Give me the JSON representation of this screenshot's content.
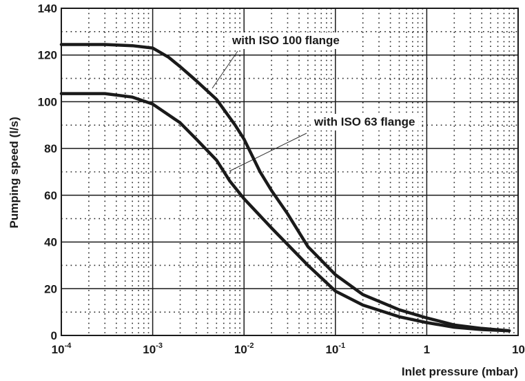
{
  "chart_data": {
    "type": "line",
    "x_scale": "log",
    "xlim": [
      0.0001,
      10
    ],
    "ylim": [
      0,
      140
    ],
    "grid": true,
    "xlabel": "Inlet pressure (mbar)",
    "ylabel": "Pumping speed (l/s)",
    "x_ticks": [
      {
        "base": "10",
        "exp": "-4"
      },
      {
        "base": "10",
        "exp": "-3"
      },
      {
        "base": "10",
        "exp": "-2"
      },
      {
        "base": "10",
        "exp": "-1"
      },
      {
        "base": "1",
        "exp": ""
      },
      {
        "base": "10",
        "exp": ""
      }
    ],
    "y_ticks": [
      "0",
      "20",
      "40",
      "60",
      "80",
      "100",
      "120",
      "140"
    ],
    "series": [
      {
        "name": "with ISO 100 flange",
        "points": [
          [
            0.0001,
            124.5
          ],
          [
            0.0003,
            124.5
          ],
          [
            0.0006,
            124
          ],
          [
            0.001,
            123
          ],
          [
            0.0015,
            119
          ],
          [
            0.002,
            115
          ],
          [
            0.003,
            109
          ],
          [
            0.005,
            101
          ],
          [
            0.008,
            90
          ],
          [
            0.01,
            84
          ],
          [
            0.015,
            70
          ],
          [
            0.02,
            62
          ],
          [
            0.03,
            52
          ],
          [
            0.05,
            38
          ],
          [
            0.1,
            26
          ],
          [
            0.2,
            17.5
          ],
          [
            0.5,
            11
          ],
          [
            1,
            7.5
          ],
          [
            2,
            4.5
          ],
          [
            4,
            3
          ],
          [
            8,
            2
          ]
        ]
      },
      {
        "name": "with ISO 63 flange",
        "points": [
          [
            0.0001,
            103.5
          ],
          [
            0.0003,
            103.5
          ],
          [
            0.0006,
            102
          ],
          [
            0.001,
            99
          ],
          [
            0.002,
            91
          ],
          [
            0.003,
            84
          ],
          [
            0.005,
            75
          ],
          [
            0.007,
            66
          ],
          [
            0.01,
            58.5
          ],
          [
            0.02,
            46
          ],
          [
            0.05,
            30
          ],
          [
            0.1,
            19
          ],
          [
            0.2,
            13
          ],
          [
            0.5,
            8
          ],
          [
            1,
            5.5
          ],
          [
            2,
            3.5
          ],
          [
            4,
            2.5
          ],
          [
            8,
            2
          ]
        ]
      }
    ],
    "annotations": [
      {
        "text": "with ISO 100 flange",
        "series": 0
      },
      {
        "text": "with ISO 63 flange",
        "series": 1
      }
    ]
  }
}
